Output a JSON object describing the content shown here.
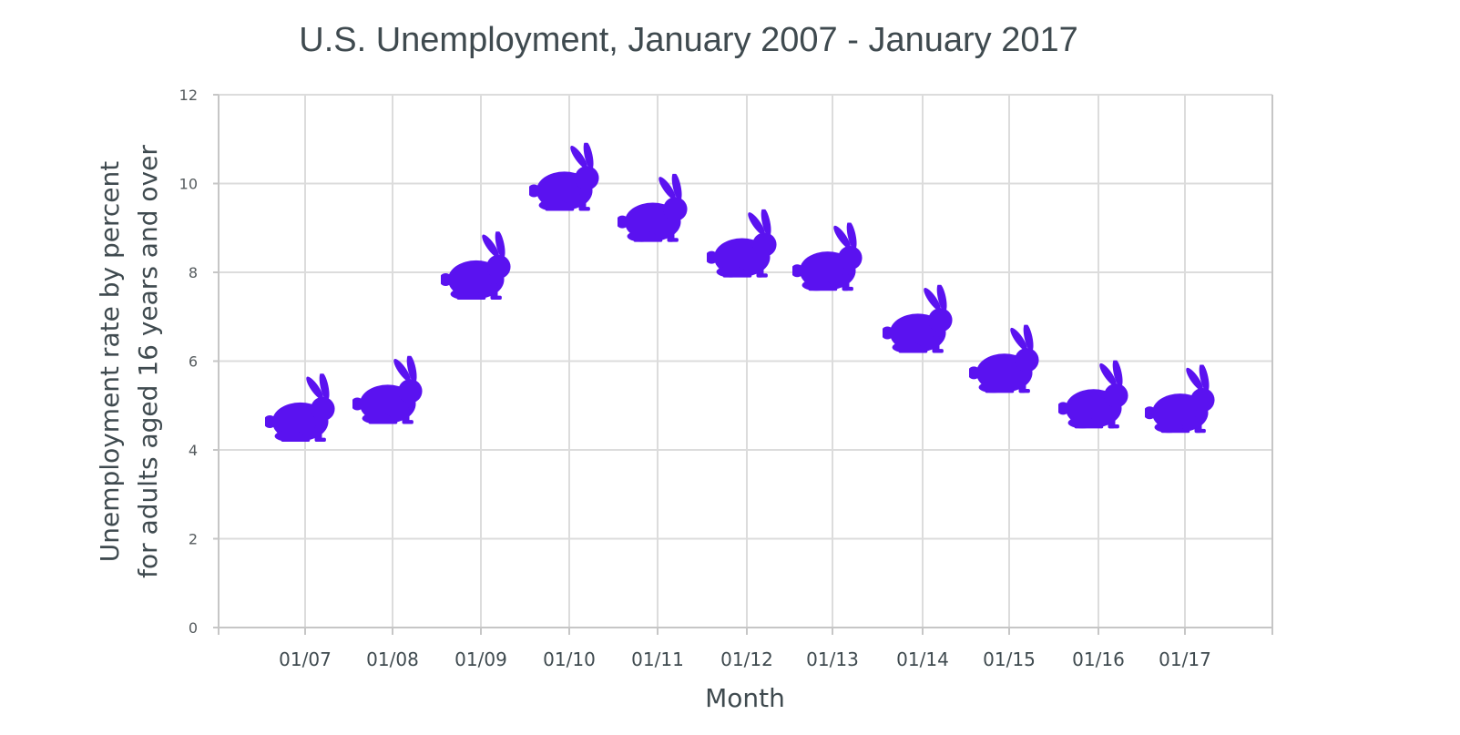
{
  "chart_data": {
    "type": "scatter",
    "title": "U.S. Unemployment, January 2007 - January 2017",
    "xlabel": "Month",
    "ylabel_lines": [
      "Unemployment  rate by percent",
      "for adults aged 16 years and over"
    ],
    "categories": [
      "01/07",
      "01/08",
      "01/09",
      "01/10",
      "01/11",
      "01/12",
      "01/13",
      "01/14",
      "01/15",
      "01/16",
      "01/17"
    ],
    "series": [
      {
        "values": [
          4.6,
          5.0,
          7.8,
          9.8,
          9.1,
          8.3,
          8.0,
          6.6,
          5.7,
          4.9,
          4.8
        ]
      }
    ],
    "ylim": [
      0,
      12
    ],
    "yticks": [
      "0",
      "2",
      "4",
      "6",
      "8",
      "10",
      "12"
    ],
    "grid": true,
    "marker": "rabbit-icon",
    "marker_color": "#5a12f0"
  }
}
